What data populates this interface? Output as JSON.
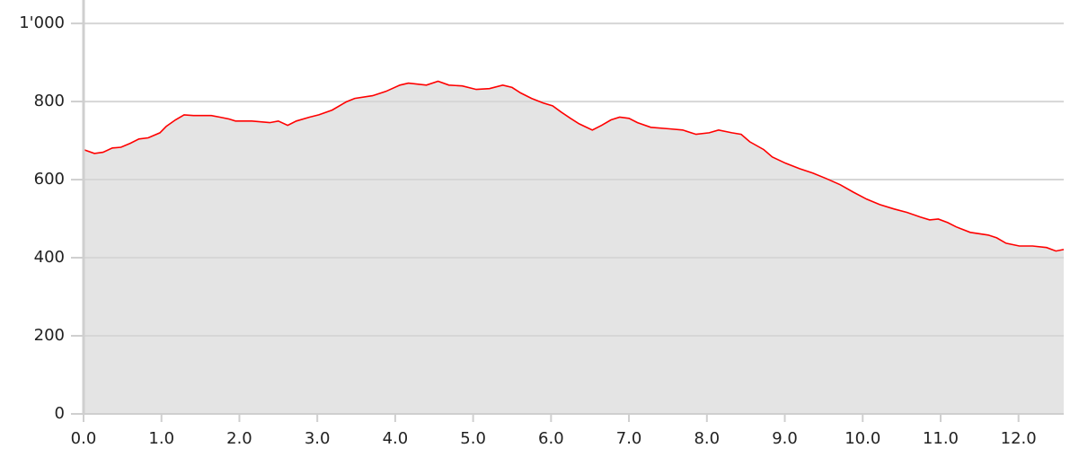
{
  "chart_data": {
    "type": "area",
    "x": [
      0,
      0.14,
      0.25,
      0.37,
      0.48,
      0.6,
      0.71,
      0.83,
      0.98,
      1.06,
      1.18,
      1.29,
      1.41,
      1.64,
      1.75,
      1.87,
      1.95,
      2.16,
      2.39,
      2.5,
      2.62,
      2.73,
      2.9,
      3.02,
      3.19,
      3.37,
      3.48,
      3.71,
      3.88,
      4.06,
      4.17,
      4.4,
      4.55,
      4.69,
      4.86,
      5.04,
      5.21,
      5.38,
      5.5,
      5.61,
      5.75,
      5.9,
      6.02,
      6.13,
      6.25,
      6.36,
      6.53,
      6.65,
      6.77,
      6.88,
      7.0,
      7.11,
      7.28,
      7.52,
      7.69,
      7.86,
      8.03,
      8.15,
      8.32,
      8.44,
      8.55,
      8.73,
      8.84,
      9.01,
      9.19,
      9.36,
      9.53,
      9.71,
      9.88,
      10.05,
      10.22,
      10.4,
      10.57,
      10.74,
      10.86,
      10.97,
      11.09,
      11.2,
      11.38,
      11.61,
      11.72,
      11.84,
      12.01,
      12.18,
      12.36,
      12.48,
      12.58
    ],
    "series": [
      {
        "color": "#ff0000",
        "fill": "#e4e4e4",
        "values": [
          677,
          667,
          670,
          681,
          683,
          693,
          704,
          707,
          720,
          736,
          753,
          766,
          764,
          764,
          760,
          755,
          750,
          750,
          746,
          750,
          739,
          750,
          760,
          766,
          778,
          799,
          808,
          815,
          826,
          842,
          847,
          842,
          852,
          842,
          840,
          831,
          833,
          842,
          836,
          822,
          808,
          796,
          789,
          773,
          757,
          743,
          727,
          739,
          753,
          760,
          757,
          746,
          734,
          730,
          727,
          716,
          720,
          727,
          720,
          716,
          697,
          677,
          658,
          642,
          628,
          617,
          603,
          587,
          568,
          550,
          536,
          525,
          516,
          504,
          497,
          499,
          490,
          479,
          465,
          458,
          451,
          437,
          430,
          430,
          426,
          417,
          421
        ]
      }
    ],
    "xlim": [
      0,
      12.58
    ],
    "xticks": [
      {
        "value": 0,
        "label": "0.0"
      },
      {
        "value": 1,
        "label": "1.0"
      },
      {
        "value": 2,
        "label": "2.0"
      },
      {
        "value": 3,
        "label": "3.0"
      },
      {
        "value": 4,
        "label": "4.0"
      },
      {
        "value": 5,
        "label": "5.0"
      },
      {
        "value": 6,
        "label": "6.0"
      },
      {
        "value": 7,
        "label": "7.0"
      },
      {
        "value": 8,
        "label": "8.0"
      },
      {
        "value": 9,
        "label": "9.0"
      },
      {
        "value": 10,
        "label": "10.0"
      },
      {
        "value": 11,
        "label": "11.0"
      },
      {
        "value": 12,
        "label": "12.0"
      }
    ],
    "ylim": [
      0,
      1060
    ],
    "yticks": [
      0,
      200,
      400,
      600,
      800,
      {
        "value": 1000,
        "label": "1'000"
      }
    ],
    "grid": true
  }
}
